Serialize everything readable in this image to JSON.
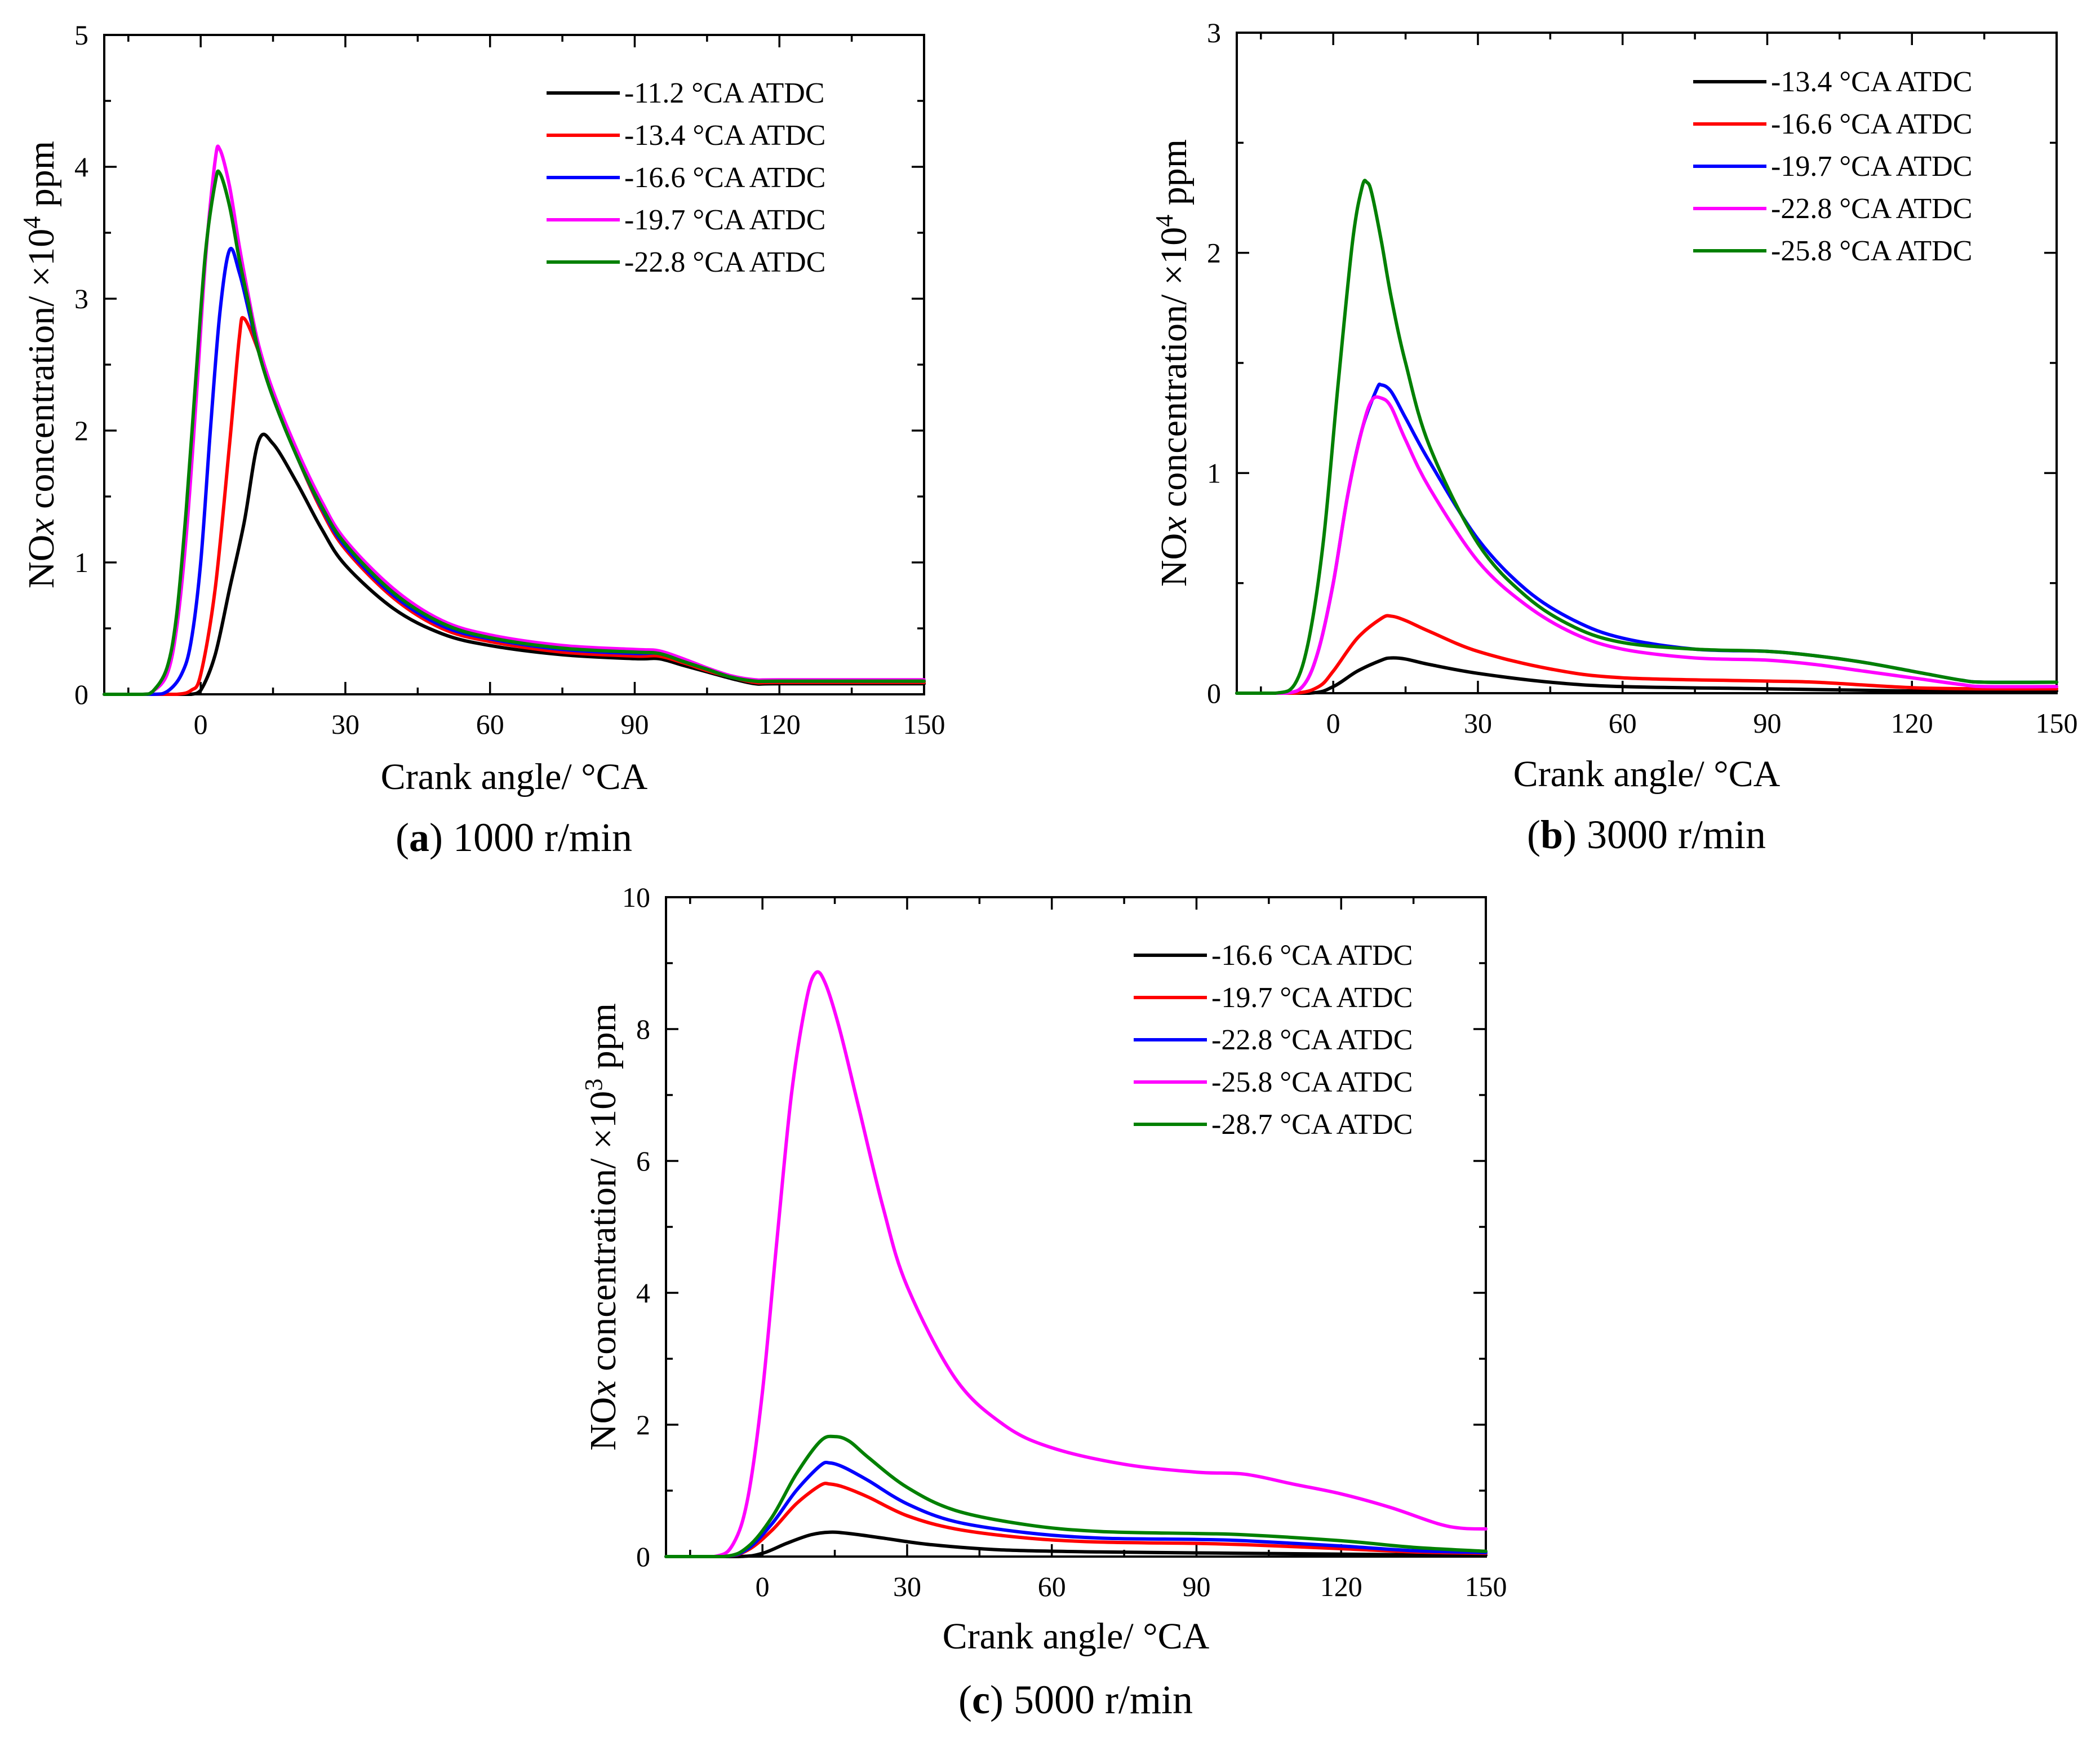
{
  "chart_data": [
    {
      "type": "line",
      "panel": "a",
      "caption_letter": "a",
      "caption_text": "1000 r/min",
      "xlabel": "Crank angle/ °CA",
      "ylabel_main": "NO",
      "ylabel_italic": "x",
      "ylabel_rest": " concentration/ ×10",
      "ylabel_exp": "4",
      "ylabel_unit": " ppm",
      "xlim": [
        -20,
        150
      ],
      "ylim": [
        0,
        5
      ],
      "xticks": [
        0,
        30,
        60,
        90,
        120,
        150
      ],
      "yticks": [
        0,
        1,
        2,
        3,
        4,
        5
      ],
      "legend_position": "top-right",
      "series": [
        {
          "name": "-11.2 °CA ATDC",
          "color": "#000000",
          "x": [
            -20,
            -5,
            -2,
            0,
            3,
            6,
            9,
            12,
            15,
            20,
            25,
            30,
            40,
            50,
            60,
            75,
            90,
            95,
            100,
            105,
            110,
            115,
            120,
            150
          ],
          "y": [
            0,
            0,
            0,
            0.03,
            0.3,
            0.8,
            1.3,
            1.92,
            1.9,
            1.6,
            1.26,
            0.98,
            0.65,
            0.46,
            0.37,
            0.3,
            0.27,
            0.27,
            0.22,
            0.17,
            0.12,
            0.08,
            0.08,
            0.08
          ]
        },
        {
          "name": "-13.4 °CA ATDC",
          "color": "#ff0000",
          "x": [
            -20,
            -10,
            -5,
            -2,
            0,
            3,
            6,
            8,
            9,
            12,
            15,
            20,
            25,
            30,
            40,
            50,
            60,
            75,
            90,
            95,
            100,
            105,
            110,
            115,
            120,
            150
          ],
          "y": [
            0,
            0,
            0,
            0.03,
            0.15,
            0.8,
            1.9,
            2.7,
            2.85,
            2.6,
            2.25,
            1.8,
            1.4,
            1.1,
            0.73,
            0.5,
            0.4,
            0.32,
            0.29,
            0.29,
            0.24,
            0.18,
            0.13,
            0.09,
            0.09,
            0.09
          ]
        },
        {
          "name": "-16.6 °CA ATDC",
          "color": "#0000ff",
          "x": [
            -20,
            -10,
            -7,
            -4,
            -2,
            0,
            2,
            4,
            6,
            8,
            10,
            12,
            15,
            20,
            25,
            30,
            40,
            50,
            60,
            75,
            90,
            95,
            100,
            105,
            110,
            115,
            120,
            150
          ],
          "y": [
            0,
            0,
            0.02,
            0.15,
            0.4,
            1.0,
            2.0,
            2.9,
            3.37,
            3.2,
            2.9,
            2.6,
            2.25,
            1.8,
            1.42,
            1.12,
            0.75,
            0.52,
            0.42,
            0.34,
            0.31,
            0.31,
            0.25,
            0.19,
            0.13,
            0.1,
            0.1,
            0.1
          ]
        },
        {
          "name": "-19.7 °CA ATDC",
          "color": "#ff00ff",
          "x": [
            -20,
            -12,
            -10,
            -7,
            -5,
            -3,
            -1,
            1,
            3,
            4,
            6,
            8,
            10,
            12,
            15,
            20,
            25,
            30,
            40,
            50,
            60,
            75,
            90,
            95,
            100,
            105,
            110,
            115,
            120,
            150
          ],
          "y": [
            0,
            0,
            0.02,
            0.15,
            0.5,
            1.2,
            2.2,
            3.3,
            4.05,
            4.13,
            3.85,
            3.4,
            3.0,
            2.65,
            2.3,
            1.85,
            1.47,
            1.17,
            0.8,
            0.56,
            0.45,
            0.37,
            0.34,
            0.33,
            0.27,
            0.2,
            0.14,
            0.11,
            0.11,
            0.11
          ]
        },
        {
          "name": "-22.8 °CA ATDC",
          "color": "#008000",
          "x": [
            -20,
            -12,
            -10,
            -7,
            -5,
            -3,
            -1,
            1,
            3,
            4,
            6,
            8,
            10,
            12,
            15,
            20,
            25,
            30,
            40,
            50,
            60,
            75,
            90,
            95,
            100,
            105,
            110,
            115,
            120,
            150
          ],
          "y": [
            0,
            0,
            0.02,
            0.2,
            0.6,
            1.4,
            2.4,
            3.35,
            3.88,
            3.95,
            3.7,
            3.3,
            2.95,
            2.6,
            2.25,
            1.8,
            1.43,
            1.14,
            0.77,
            0.54,
            0.43,
            0.35,
            0.32,
            0.31,
            0.25,
            0.19,
            0.13,
            0.1,
            0.1,
            0.1
          ]
        }
      ]
    },
    {
      "type": "line",
      "panel": "b",
      "caption_letter": "b",
      "caption_text": "3000 r/min",
      "xlabel": "Crank angle/ °CA",
      "ylabel_main": "NO",
      "ylabel_italic": "x",
      "ylabel_rest": " concentration/ ×10",
      "ylabel_exp": "4",
      "ylabel_unit": " ppm",
      "xlim": [
        -20,
        150
      ],
      "ylim": [
        0,
        3
      ],
      "xticks": [
        0,
        30,
        60,
        90,
        120,
        150
      ],
      "yticks": [
        0,
        1,
        2,
        3
      ],
      "legend_position": "top-right",
      "series": [
        {
          "name": "-13.4 °CA ATDC",
          "color": "#000000",
          "x": [
            -20,
            -5,
            0,
            5,
            10,
            12,
            15,
            20,
            30,
            45,
            60,
            90,
            120,
            135,
            150
          ],
          "y": [
            0,
            0,
            0.03,
            0.1,
            0.15,
            0.16,
            0.155,
            0.13,
            0.09,
            0.05,
            0.03,
            0.02,
            0.01,
            0.01,
            0.01
          ]
        },
        {
          "name": "-16.6 °CA ATDC",
          "color": "#ff0000",
          "x": [
            -20,
            -8,
            -3,
            0,
            5,
            10,
            12,
            15,
            20,
            30,
            45,
            60,
            90,
            100,
            120,
            135,
            150
          ],
          "y": [
            0,
            0,
            0.03,
            0.1,
            0.25,
            0.34,
            0.35,
            0.33,
            0.28,
            0.19,
            0.11,
            0.07,
            0.055,
            0.05,
            0.025,
            0.02,
            0.02
          ]
        },
        {
          "name": "-19.7 °CA ATDC",
          "color": "#0000ff",
          "x": [
            -20,
            -10,
            -6,
            -3,
            0,
            3,
            6,
            9,
            10,
            12,
            15,
            20,
            30,
            40,
            50,
            60,
            75,
            90,
            100,
            110,
            120,
            130,
            135,
            150
          ],
          "y": [
            0,
            0,
            0.04,
            0.2,
            0.5,
            0.9,
            1.2,
            1.38,
            1.4,
            1.37,
            1.25,
            1.05,
            0.7,
            0.47,
            0.33,
            0.25,
            0.2,
            0.19,
            0.17,
            0.14,
            0.1,
            0.06,
            0.05,
            0.05
          ]
        },
        {
          "name": "-22.8 °CA ATDC",
          "color": "#ff00ff",
          "x": [
            -20,
            -10,
            -6,
            -3,
            0,
            3,
            6,
            8,
            10,
            12,
            15,
            20,
            30,
            40,
            50,
            60,
            75,
            90,
            100,
            110,
            120,
            130,
            135,
            150
          ],
          "y": [
            0,
            0,
            0.04,
            0.2,
            0.5,
            0.9,
            1.2,
            1.33,
            1.34,
            1.3,
            1.15,
            0.93,
            0.6,
            0.4,
            0.27,
            0.2,
            0.16,
            0.15,
            0.13,
            0.1,
            0.07,
            0.04,
            0.03,
            0.03
          ]
        },
        {
          "name": "-25.8 °CA ATDC",
          "color": "#008000",
          "x": [
            -20,
            -12,
            -8,
            -5,
            -2,
            1,
            4,
            6,
            7,
            8,
            10,
            12,
            15,
            20,
            30,
            40,
            50,
            60,
            75,
            90,
            100,
            110,
            120,
            130,
            135,
            150
          ],
          "y": [
            0,
            0,
            0.04,
            0.25,
            0.7,
            1.4,
            2.05,
            2.3,
            2.32,
            2.27,
            2.05,
            1.8,
            1.5,
            1.12,
            0.68,
            0.44,
            0.3,
            0.23,
            0.2,
            0.19,
            0.17,
            0.14,
            0.1,
            0.06,
            0.05,
            0.05
          ]
        }
      ]
    },
    {
      "type": "line",
      "panel": "c",
      "caption_letter": "c",
      "caption_text": "5000 r/min",
      "xlabel": "Crank angle/ °CA",
      "ylabel_main": "NO",
      "ylabel_italic": "x",
      "ylabel_rest": " concentration/ ×10",
      "ylabel_exp": "3",
      "ylabel_unit": " ppm",
      "xlim": [
        -20,
        150
      ],
      "ylim": [
        0,
        10
      ],
      "xticks": [
        0,
        30,
        60,
        90,
        120,
        150
      ],
      "yticks": [
        0,
        2,
        4,
        6,
        8,
        10
      ],
      "legend_position": "top-right",
      "series": [
        {
          "name": "-16.6 °CA ATDC",
          "color": "#000000",
          "x": [
            -20,
            -5,
            0,
            5,
            10,
            14,
            18,
            25,
            35,
            50,
            70,
            100,
            130,
            150
          ],
          "y": [
            0,
            0,
            0.05,
            0.2,
            0.33,
            0.37,
            0.35,
            0.28,
            0.18,
            0.1,
            0.07,
            0.05,
            0.03,
            0.02
          ]
        },
        {
          "name": "-19.7 °CA ATDC",
          "color": "#ff0000",
          "x": [
            -20,
            -8,
            -3,
            2,
            7,
            12,
            14,
            17,
            22,
            30,
            40,
            55,
            70,
            90,
            100,
            120,
            135,
            150
          ],
          "y": [
            0,
            0,
            0.1,
            0.4,
            0.8,
            1.08,
            1.1,
            1.05,
            0.9,
            0.62,
            0.42,
            0.28,
            0.22,
            0.2,
            0.18,
            0.12,
            0.07,
            0.05
          ]
        },
        {
          "name": "-22.8 °CA ATDC",
          "color": "#0000ff",
          "x": [
            -20,
            -8,
            -3,
            2,
            7,
            12,
            14,
            17,
            22,
            30,
            40,
            55,
            70,
            90,
            100,
            120,
            135,
            150
          ],
          "y": [
            0,
            0,
            0.12,
            0.5,
            1.0,
            1.38,
            1.42,
            1.35,
            1.15,
            0.8,
            0.53,
            0.36,
            0.28,
            0.26,
            0.24,
            0.16,
            0.09,
            0.06
          ]
        },
        {
          "name": "-25.8 °CA ATDC",
          "color": "#ff00ff",
          "x": [
            -20,
            -10,
            -6,
            -3,
            0,
            3,
            6,
            9,
            11,
            13,
            16,
            20,
            25,
            30,
            40,
            50,
            60,
            75,
            90,
            100,
            110,
            120,
            130,
            140,
            145,
            150
          ],
          "y": [
            0,
            0,
            0.2,
            0.9,
            2.5,
            4.8,
            7.0,
            8.4,
            8.85,
            8.7,
            8.0,
            6.8,
            5.3,
            4.1,
            2.7,
            2.0,
            1.65,
            1.4,
            1.28,
            1.25,
            1.1,
            0.95,
            0.75,
            0.5,
            0.43,
            0.42
          ]
        },
        {
          "name": "-28.7 °CA ATDC",
          "color": "#008000",
          "x": [
            -20,
            -8,
            -3,
            2,
            7,
            12,
            15,
            18,
            22,
            30,
            40,
            55,
            70,
            90,
            100,
            120,
            135,
            150
          ],
          "y": [
            0,
            0,
            0.15,
            0.6,
            1.25,
            1.75,
            1.82,
            1.75,
            1.5,
            1.05,
            0.7,
            0.48,
            0.38,
            0.35,
            0.33,
            0.24,
            0.14,
            0.08
          ]
        }
      ]
    }
  ]
}
